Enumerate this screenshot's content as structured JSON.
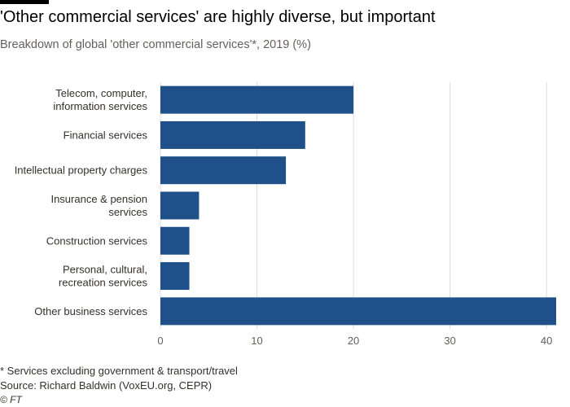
{
  "header": {
    "title": "'Other commercial services' are highly diverse, but important",
    "subtitle": "Breakdown of global 'other commercial services'*, 2019 (%)"
  },
  "footer": {
    "footnote": "* Services excluding government & transport/travel",
    "source": "Source: Richard Baldwin (VoxEU.org, CEPR)",
    "credit": "© FT"
  },
  "colors": {
    "bar": "#1f5089",
    "grid": "#e0dcd9",
    "tick_text": "#66605c",
    "label_text": "#33302e"
  },
  "chart_data": {
    "type": "bar",
    "orientation": "horizontal",
    "title": "'Other commercial services' are highly diverse, but important",
    "subtitle": "Breakdown of global 'other commercial services'*, 2019 (%)",
    "categories": [
      [
        "Telecom, computer,",
        "information services"
      ],
      [
        "Financial services"
      ],
      [
        "Intellectual property charges"
      ],
      [
        "Insurance & pension",
        "services"
      ],
      [
        "Construction services"
      ],
      [
        "Personal, cultural,",
        "recreation services"
      ],
      [
        "Other business services"
      ]
    ],
    "values": [
      20,
      15,
      13,
      4,
      3,
      3,
      41
    ],
    "xlim": [
      0,
      41
    ],
    "xticks": [
      0,
      10,
      20,
      30,
      40
    ],
    "grid": "vertical",
    "legend": "none"
  }
}
